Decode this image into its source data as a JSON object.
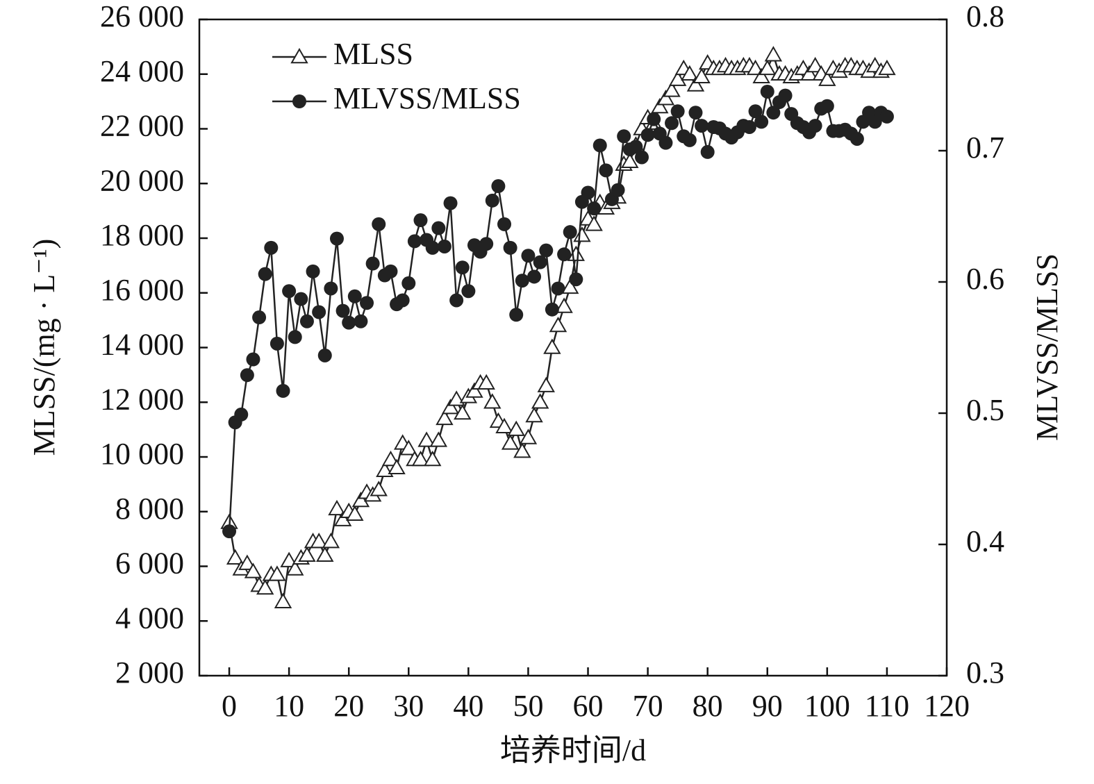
{
  "chart_data": {
    "type": "line",
    "x": [
      0,
      1,
      2,
      3,
      4,
      5,
      6,
      7,
      8,
      9,
      10,
      11,
      12,
      13,
      14,
      15,
      16,
      17,
      18,
      19,
      20,
      21,
      22,
      23,
      24,
      25,
      26,
      27,
      28,
      29,
      30,
      31,
      32,
      33,
      34,
      35,
      36,
      37,
      38,
      39,
      40,
      41,
      42,
      43,
      44,
      45,
      46,
      47,
      48,
      49,
      50,
      51,
      52,
      53,
      54,
      55,
      56,
      57,
      58,
      59,
      60,
      61,
      62,
      63,
      64,
      65,
      66,
      67,
      68,
      69,
      70,
      71,
      72,
      73,
      74,
      75,
      76,
      77,
      78,
      79,
      80,
      81,
      82,
      83,
      84,
      85,
      86,
      87,
      88,
      89,
      90,
      91,
      92,
      93,
      94,
      95,
      96,
      97,
      98,
      99,
      100,
      101,
      102,
      103,
      104,
      105,
      106,
      107,
      108,
      109,
      110
    ],
    "series": [
      {
        "name": "MLSS",
        "color": "#222222",
        "marker": "triangle",
        "values": [
          7600,
          6300,
          5900,
          6100,
          5800,
          5300,
          5200,
          5700,
          5700,
          4700,
          6200,
          5900,
          6300,
          6400,
          6900,
          6900,
          6400,
          6900,
          8100,
          7700,
          8000,
          7900,
          8400,
          8700,
          8600,
          8800,
          9500,
          9900,
          9600,
          10500,
          10300,
          9900,
          9900,
          10600,
          9900,
          10600,
          11400,
          11800,
          12100,
          11600,
          12200,
          12400,
          12700,
          12700,
          12000,
          11300,
          11100,
          10500,
          11000,
          10200,
          10700,
          11500,
          12000,
          12600,
          14000,
          14800,
          15500,
          16200,
          17400,
          18100,
          18700,
          18500,
          19300,
          19100,
          19300,
          19500,
          20700,
          20800,
          21400,
          22000,
          22400,
          22200,
          22800,
          23100,
          23400,
          23800,
          24200,
          24000,
          23600,
          23900,
          24400,
          24200,
          24200,
          24300,
          24200,
          24200,
          24300,
          24300,
          24200,
          23900,
          24200,
          24700,
          24000,
          24000,
          23900,
          24000,
          24200,
          24000,
          24300,
          24000,
          23800,
          24200,
          24100,
          24300,
          24300,
          24200,
          24200,
          24100,
          24300,
          24100,
          24200
        ]
      },
      {
        "name": "MLVSS/MLSS",
        "color": "#222222",
        "marker": "circle",
        "axis": "y2",
        "values": [
          0.41,
          0.493,
          0.499,
          0.529,
          0.541,
          0.573,
          0.606,
          0.626,
          0.553,
          0.517,
          0.593,
          0.558,
          0.587,
          0.57,
          0.608,
          0.577,
          0.544,
          0.595,
          0.633,
          0.578,
          0.569,
          0.589,
          0.57,
          0.584,
          0.614,
          0.644,
          0.605,
          0.608,
          0.583,
          0.586,
          0.599,
          0.631,
          0.647,
          0.632,
          0.626,
          0.641,
          0.627,
          0.66,
          0.586,
          0.611,
          0.593,
          0.628,
          0.623,
          0.629,
          0.662,
          0.673,
          0.644,
          0.626,
          0.575,
          0.601,
          0.62,
          0.604,
          0.615,
          0.624,
          0.579,
          0.595,
          0.621,
          0.638,
          0.602,
          0.661,
          0.668,
          0.656,
          0.704,
          0.685,
          0.663,
          0.67,
          0.711,
          0.701,
          0.703,
          0.695,
          0.712,
          0.724,
          0.713,
          0.706,
          0.721,
          0.73,
          0.711,
          0.708,
          0.729,
          0.719,
          0.699,
          0.718,
          0.717,
          0.713,
          0.71,
          0.714,
          0.719,
          0.718,
          0.73,
          0.722,
          0.745,
          0.729,
          0.737,
          0.742,
          0.728,
          0.721,
          0.718,
          0.714,
          0.719,
          0.732,
          0.734,
          0.715,
          0.715,
          0.716,
          0.713,
          0.709,
          0.722,
          0.729,
          0.722,
          0.729,
          0.726
        ]
      }
    ],
    "xlabel": "培养时间/d",
    "ylabel": "MLSS/(mg · L⁻¹)",
    "y2label": "MLVSS/MLSS",
    "xlim": [
      -5,
      120
    ],
    "xticks": [
      0,
      10,
      20,
      30,
      40,
      50,
      60,
      70,
      80,
      90,
      100,
      110,
      120
    ],
    "ylim": [
      2000,
      26000
    ],
    "yticks": [
      {
        "value": 2000,
        "label": "2 000"
      },
      {
        "value": 4000,
        "label": "4 000"
      },
      {
        "value": 6000,
        "label": "6 000"
      },
      {
        "value": 8000,
        "label": "8 000"
      },
      {
        "value": 10000,
        "label": "10 000"
      },
      {
        "value": 12000,
        "label": "12 000"
      },
      {
        "value": 14000,
        "label": "14 000"
      },
      {
        "value": 16000,
        "label": "16 000"
      },
      {
        "value": 18000,
        "label": "18 000"
      },
      {
        "value": 20000,
        "label": "20 000"
      },
      {
        "value": 22000,
        "label": "22 000"
      },
      {
        "value": 24000,
        "label": "24 000"
      },
      {
        "value": 26000,
        "label": "26 000"
      }
    ],
    "y2lim": [
      0.3,
      0.8
    ],
    "y2ticks": [
      0.3,
      0.4,
      0.5,
      0.6,
      0.7,
      0.8
    ],
    "legend": "upper left",
    "grid": false
  }
}
